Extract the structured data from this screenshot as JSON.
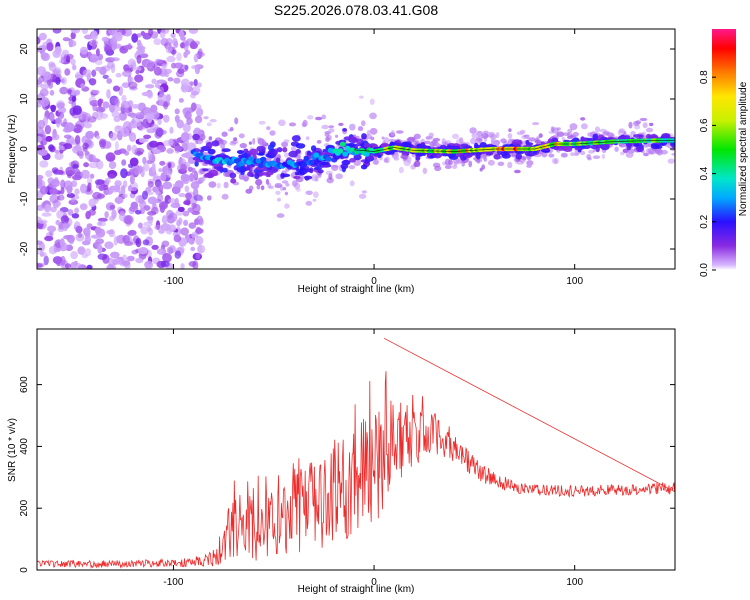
{
  "title": "S225.2026.078.03.41.G08",
  "chart_data": [
    {
      "type": "heatmap",
      "title": "S225.2026.078.03.41.G08",
      "xlabel": "Height of straight line (km)",
      "ylabel": "Frequency (Hz)",
      "xlim": [
        -168,
        150
      ],
      "ylim": [
        -24,
        24
      ],
      "xticks": [
        -100,
        0,
        100
      ],
      "yticks": [
        -20,
        -10,
        0,
        10,
        20
      ],
      "colorbar": {
        "label": "Normalized spectral amplitude",
        "range": [
          0,
          1
        ],
        "ticks": [
          0.0,
          0.2,
          0.4,
          0.6,
          0.8
        ]
      },
      "ridge": {
        "description": "frequency offset of peak amplitude vs height",
        "x": [
          -90,
          -75,
          -60,
          -45,
          -35,
          -25,
          -15,
          0,
          10,
          20,
          40,
          60,
          70,
          80,
          90,
          100,
          120,
          140,
          150
        ],
        "y": [
          -1,
          -2.5,
          -2.5,
          -3,
          -3,
          -1.5,
          0,
          -0.5,
          0.3,
          -0.3,
          -0.5,
          0,
          0,
          0,
          1,
          1,
          1.5,
          1.7,
          1.7
        ],
        "amplitude": [
          0.3,
          0.35,
          0.3,
          0.28,
          0.3,
          0.35,
          0.4,
          0.45,
          0.7,
          0.65,
          0.75,
          0.8,
          0.95,
          0.7,
          0.8,
          0.6,
          0.55,
          0.55,
          0.5
        ]
      },
      "noise_region": [
        -168,
        -90
      ]
    },
    {
      "type": "line",
      "xlabel": "Height of straight line (km)",
      "ylabel": "SNR (10 * v/v)",
      "xlim": [
        -168,
        150
      ],
      "ylim": [
        0,
        780
      ],
      "xticks": [
        -100,
        0,
        100
      ],
      "yticks": [
        0,
        200,
        400,
        600
      ],
      "color": "#ee2a2a",
      "envelope": {
        "x": [
          -168,
          -140,
          -110,
          -90,
          -80,
          -72,
          -62,
          -55,
          -45,
          -35,
          -25,
          -15,
          -10,
          -5,
          0,
          5,
          10,
          20,
          30,
          40,
          50,
          60,
          70,
          80,
          100,
          120,
          150
        ],
        "mean": [
          20,
          20,
          22,
          25,
          40,
          120,
          150,
          140,
          170,
          200,
          220,
          260,
          300,
          330,
          350,
          380,
          420,
          430,
          440,
          400,
          330,
          290,
          270,
          260,
          255,
          260,
          265
        ],
        "spread": [
          10,
          12,
          12,
          15,
          30,
          90,
          130,
          100,
          120,
          140,
          150,
          170,
          180,
          200,
          230,
          200,
          150,
          90,
          70,
          50,
          35,
          25,
          20,
          18,
          18,
          18,
          20
        ]
      },
      "peak": {
        "x": 5,
        "y": 750
      }
    }
  ]
}
